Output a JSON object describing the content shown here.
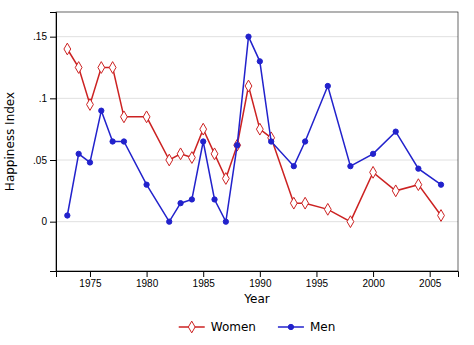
{
  "chart_data": {
    "type": "line",
    "x": [
      1973,
      1974,
      1975,
      1976,
      1977,
      1978,
      1980,
      1982,
      1983,
      1984,
      1985,
      1986,
      1987,
      1988,
      1989,
      1990,
      1991,
      1993,
      1994,
      1996,
      1998,
      2000,
      2002,
      2004,
      2006
    ],
    "series": [
      {
        "name": "Women",
        "color": "#cc2222",
        "marker": "diamond",
        "values": [
          0.14,
          0.125,
          0.095,
          0.125,
          0.125,
          0.085,
          0.085,
          0.05,
          0.055,
          0.052,
          0.075,
          0.055,
          0.035,
          0.062,
          0.11,
          0.075,
          0.068,
          0.015,
          0.015,
          0.01,
          0.0,
          0.04,
          0.025,
          0.03,
          0.005
        ]
      },
      {
        "name": "Men",
        "color": "#2222cc",
        "marker": "circle",
        "values": [
          0.005,
          0.055,
          0.048,
          0.09,
          0.065,
          0.065,
          0.03,
          0.0,
          0.015,
          0.018,
          0.065,
          0.018,
          0.0,
          0.062,
          0.15,
          0.13,
          0.065,
          0.045,
          0.065,
          0.11,
          0.045,
          0.055,
          0.073,
          0.043,
          0.03
        ]
      }
    ],
    "x_label": "Year",
    "y_label": "Happiness Index",
    "xlim": [
      1972,
      2007.5
    ],
    "ylim": [
      -0.04,
      0.17
    ],
    "xticks": [
      1975,
      1980,
      1985,
      1990,
      1995,
      2000,
      2005
    ],
    "yticks": [
      0,
      {
        "value": 0.05,
        "label": ".05"
      },
      {
        "value": 0.1,
        "label": ".1"
      },
      {
        "value": 0.15,
        "label": ".15"
      }
    ],
    "grid": "y",
    "legend": "bottom"
  }
}
